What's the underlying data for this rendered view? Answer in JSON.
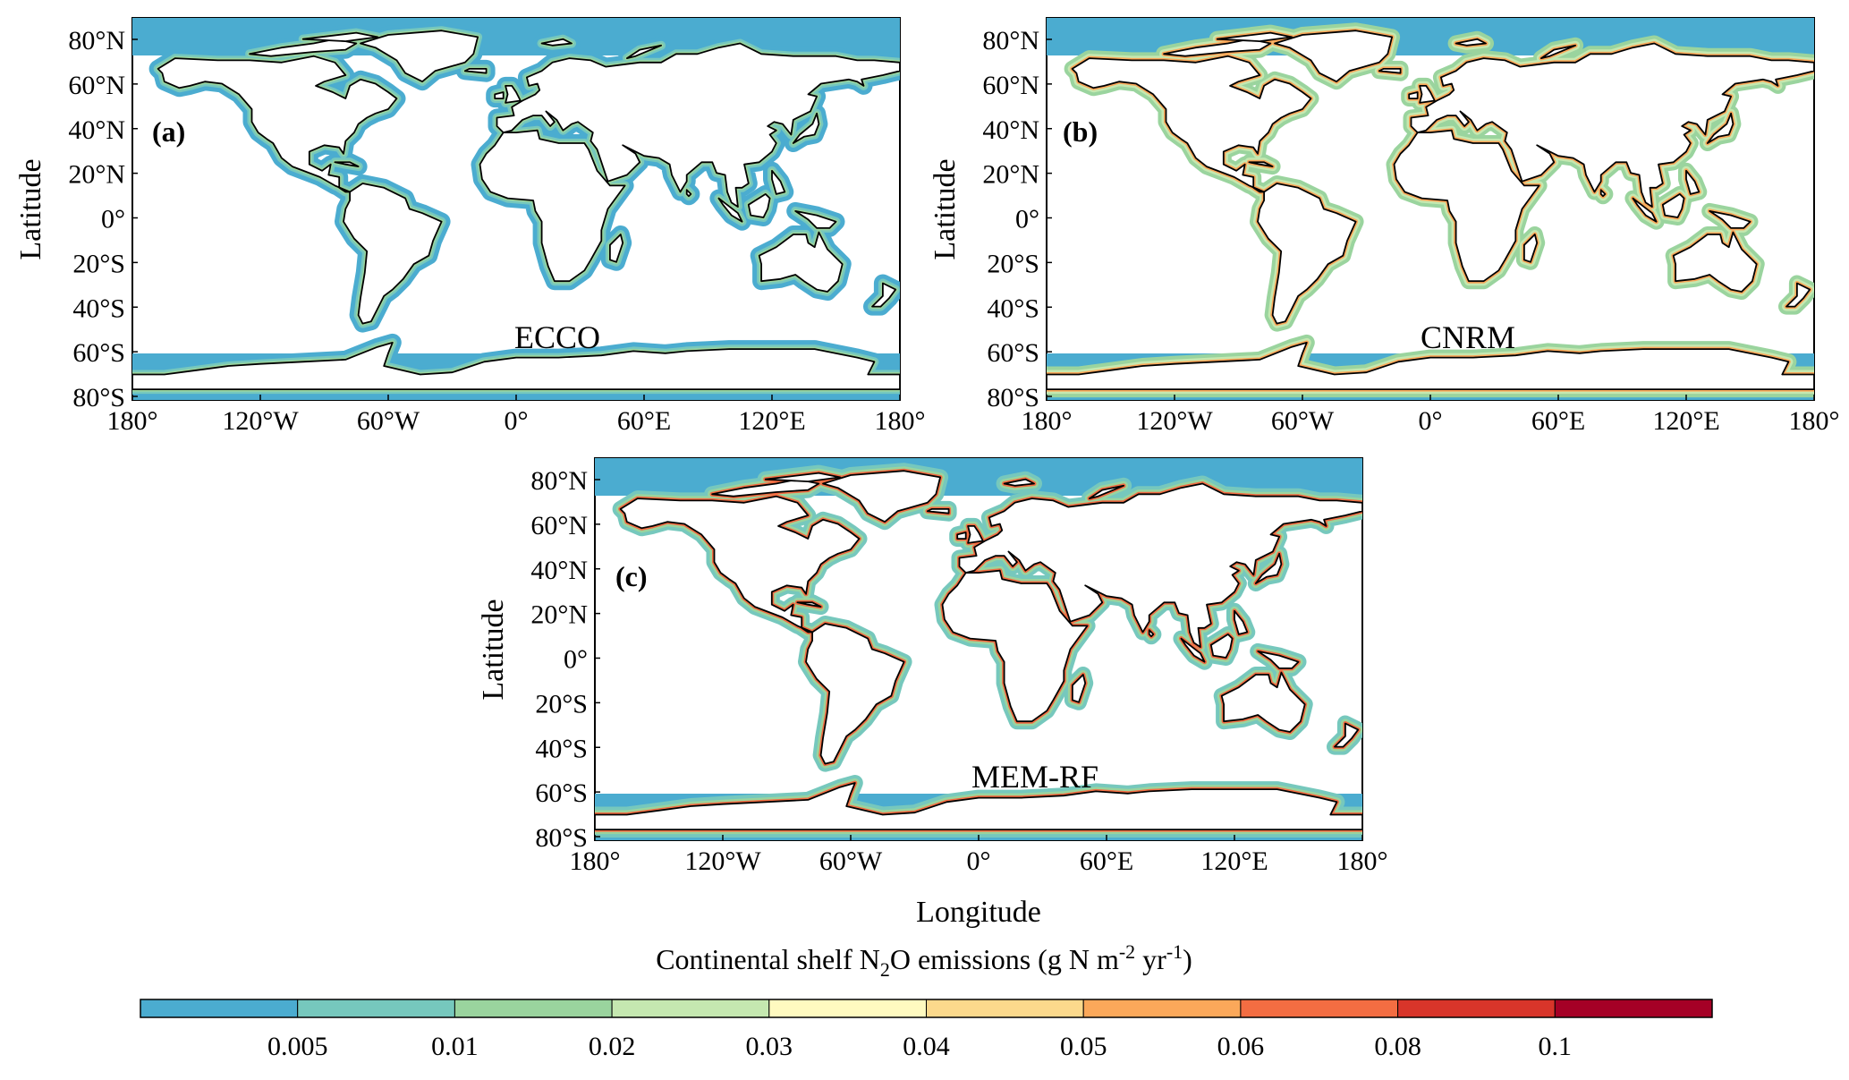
{
  "panels": [
    {
      "id": "a",
      "tag": "(a)",
      "model_label": "ECCO"
    },
    {
      "id": "b",
      "tag": "(b)",
      "model_label": "CNRM"
    },
    {
      "id": "c",
      "tag": "(c)",
      "model_label": "MEM-RF"
    }
  ],
  "axes": {
    "lat_ticks": [
      "80°N",
      "60°N",
      "40°N",
      "20°N",
      "0°",
      "20°S",
      "40°S",
      "60°S",
      "80°S"
    ],
    "lon_ticks": [
      "180°",
      "120°W",
      "60°W",
      "0°",
      "60°E",
      "120°E",
      "180°"
    ],
    "ylabel": "Latitude",
    "xlabel": "Longitude"
  },
  "colorbar": {
    "title_prefix": "Continental shelf N",
    "title_sub": "2",
    "title_mid": "O emissions (g N m",
    "title_sup1": "-2",
    "title_mid2": " yr",
    "title_sup2": "-1",
    "title_suffix": ")",
    "tick_labels": [
      "0.005",
      "0.01",
      "0.02",
      "0.03",
      "0.04",
      "0.05",
      "0.06",
      "0.08",
      "0.1"
    ],
    "colors": [
      "#4bacd0",
      "#76c8bd",
      "#9ad49e",
      "#c5e8b0",
      "#fffac0",
      "#fcd98c",
      "#fba85a",
      "#f36d42",
      "#d8352a",
      "#a50026"
    ]
  }
}
